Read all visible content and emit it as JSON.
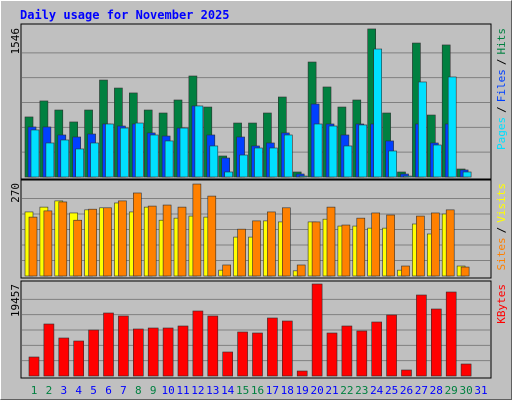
{
  "chart_data": [
    {
      "type": "bar",
      "title": "Daily usage for November 2025",
      "separator": "/",
      "ylim": [
        0,
        1546
      ],
      "yticks": [
        1546
      ],
      "series": [
        {
          "name": "Hits",
          "color": "#008040",
          "values": [
            623,
            789,
            695,
            571,
            695,
            1006,
            923,
            872,
            695,
            664,
            799,
            1048,
            726,
            218,
            560,
            560,
            664,
            830,
            52,
            1193,
            934,
            726,
            799,
            1536,
            664,
            52,
            1390,
            643,
            1370,
            83,
            0
          ]
        },
        {
          "name": "Files",
          "color": "#0040ff",
          "values": [
            519,
            519,
            436,
            415,
            446,
            550,
            529,
            550,
            457,
            425,
            508,
            737,
            436,
            197,
            415,
            322,
            353,
            457,
            31,
            757,
            550,
            436,
            550,
            550,
            374,
            31,
            550,
            353,
            550,
            73,
            0
          ]
        },
        {
          "name": "Pages",
          "color": "#00e0ff",
          "values": [
            488,
            353,
            384,
            291,
            353,
            550,
            508,
            560,
            436,
            374,
            508,
            737,
            322,
            52,
            228,
            301,
            301,
            436,
            10,
            550,
            529,
            322,
            540,
            1328,
            270,
            10,
            986,
            332,
            1038,
            52,
            0
          ]
        }
      ]
    },
    {
      "type": "bar",
      "separator": "/",
      "ylim": [
        0,
        270
      ],
      "yticks": [
        270
      ],
      "series": [
        {
          "name": "Visits",
          "color": "#ffff00",
          "values": [
            186,
            200,
            218,
            183,
            192,
            198,
            212,
            186,
            200,
            162,
            168,
            174,
            171,
            17,
            113,
            113,
            160,
            157,
            15,
            157,
            165,
            145,
            145,
            139,
            139,
            17,
            151,
            122,
            180,
            29,
            0
          ]
        },
        {
          "name": "Sites",
          "color": "#ff8000",
          "values": [
            171,
            189,
            215,
            162,
            194,
            198,
            218,
            241,
            203,
            206,
            200,
            267,
            232,
            32,
            136,
            160,
            186,
            198,
            32,
            157,
            200,
            148,
            168,
            183,
            177,
            29,
            174,
            183,
            192,
            26,
            0
          ]
        }
      ]
    },
    {
      "type": "bar",
      "ylim": [
        0,
        19457
      ],
      "yticks": [
        19457
      ],
      "categories": [
        "1",
        "2",
        "3",
        "4",
        "5",
        "6",
        "7",
        "8",
        "9",
        "10",
        "11",
        "12",
        "13",
        "14",
        "15",
        "16",
        "17",
        "18",
        "19",
        "20",
        "21",
        "22",
        "23",
        "24",
        "25",
        "26",
        "27",
        "28",
        "29",
        "30",
        "31"
      ],
      "category_colors": [
        "#008040",
        "#008040",
        "#0000ff",
        "#0000ff",
        "#0000ff",
        "#0000ff",
        "#0000ff",
        "#008040",
        "#008040",
        "#0000ff",
        "#0000ff",
        "#0000ff",
        "#0000ff",
        "#0000ff",
        "#008040",
        "#008040",
        "#0000ff",
        "#0000ff",
        "#0000ff",
        "#0000ff",
        "#0000ff",
        "#008040",
        "#008040",
        "#0000ff",
        "#0000ff",
        "#0000ff",
        "#0000ff",
        "#0000ff",
        "#008040",
        "#008040",
        "#0000ff"
      ],
      "series": [
        {
          "name": "KBytes",
          "color": "#ff0000",
          "values": [
            4018,
            10997,
            8036,
            7402,
            9728,
            13324,
            12690,
            9940,
            10151,
            10151,
            10574,
            13747,
            12690,
            5076,
            9305,
            9094,
            12267,
            11632,
            1057,
            19457,
            9094,
            10574,
            9517,
            11421,
            12901,
            1269,
            17130,
            14170,
            17764,
            2538,
            0
          ]
        }
      ]
    }
  ]
}
